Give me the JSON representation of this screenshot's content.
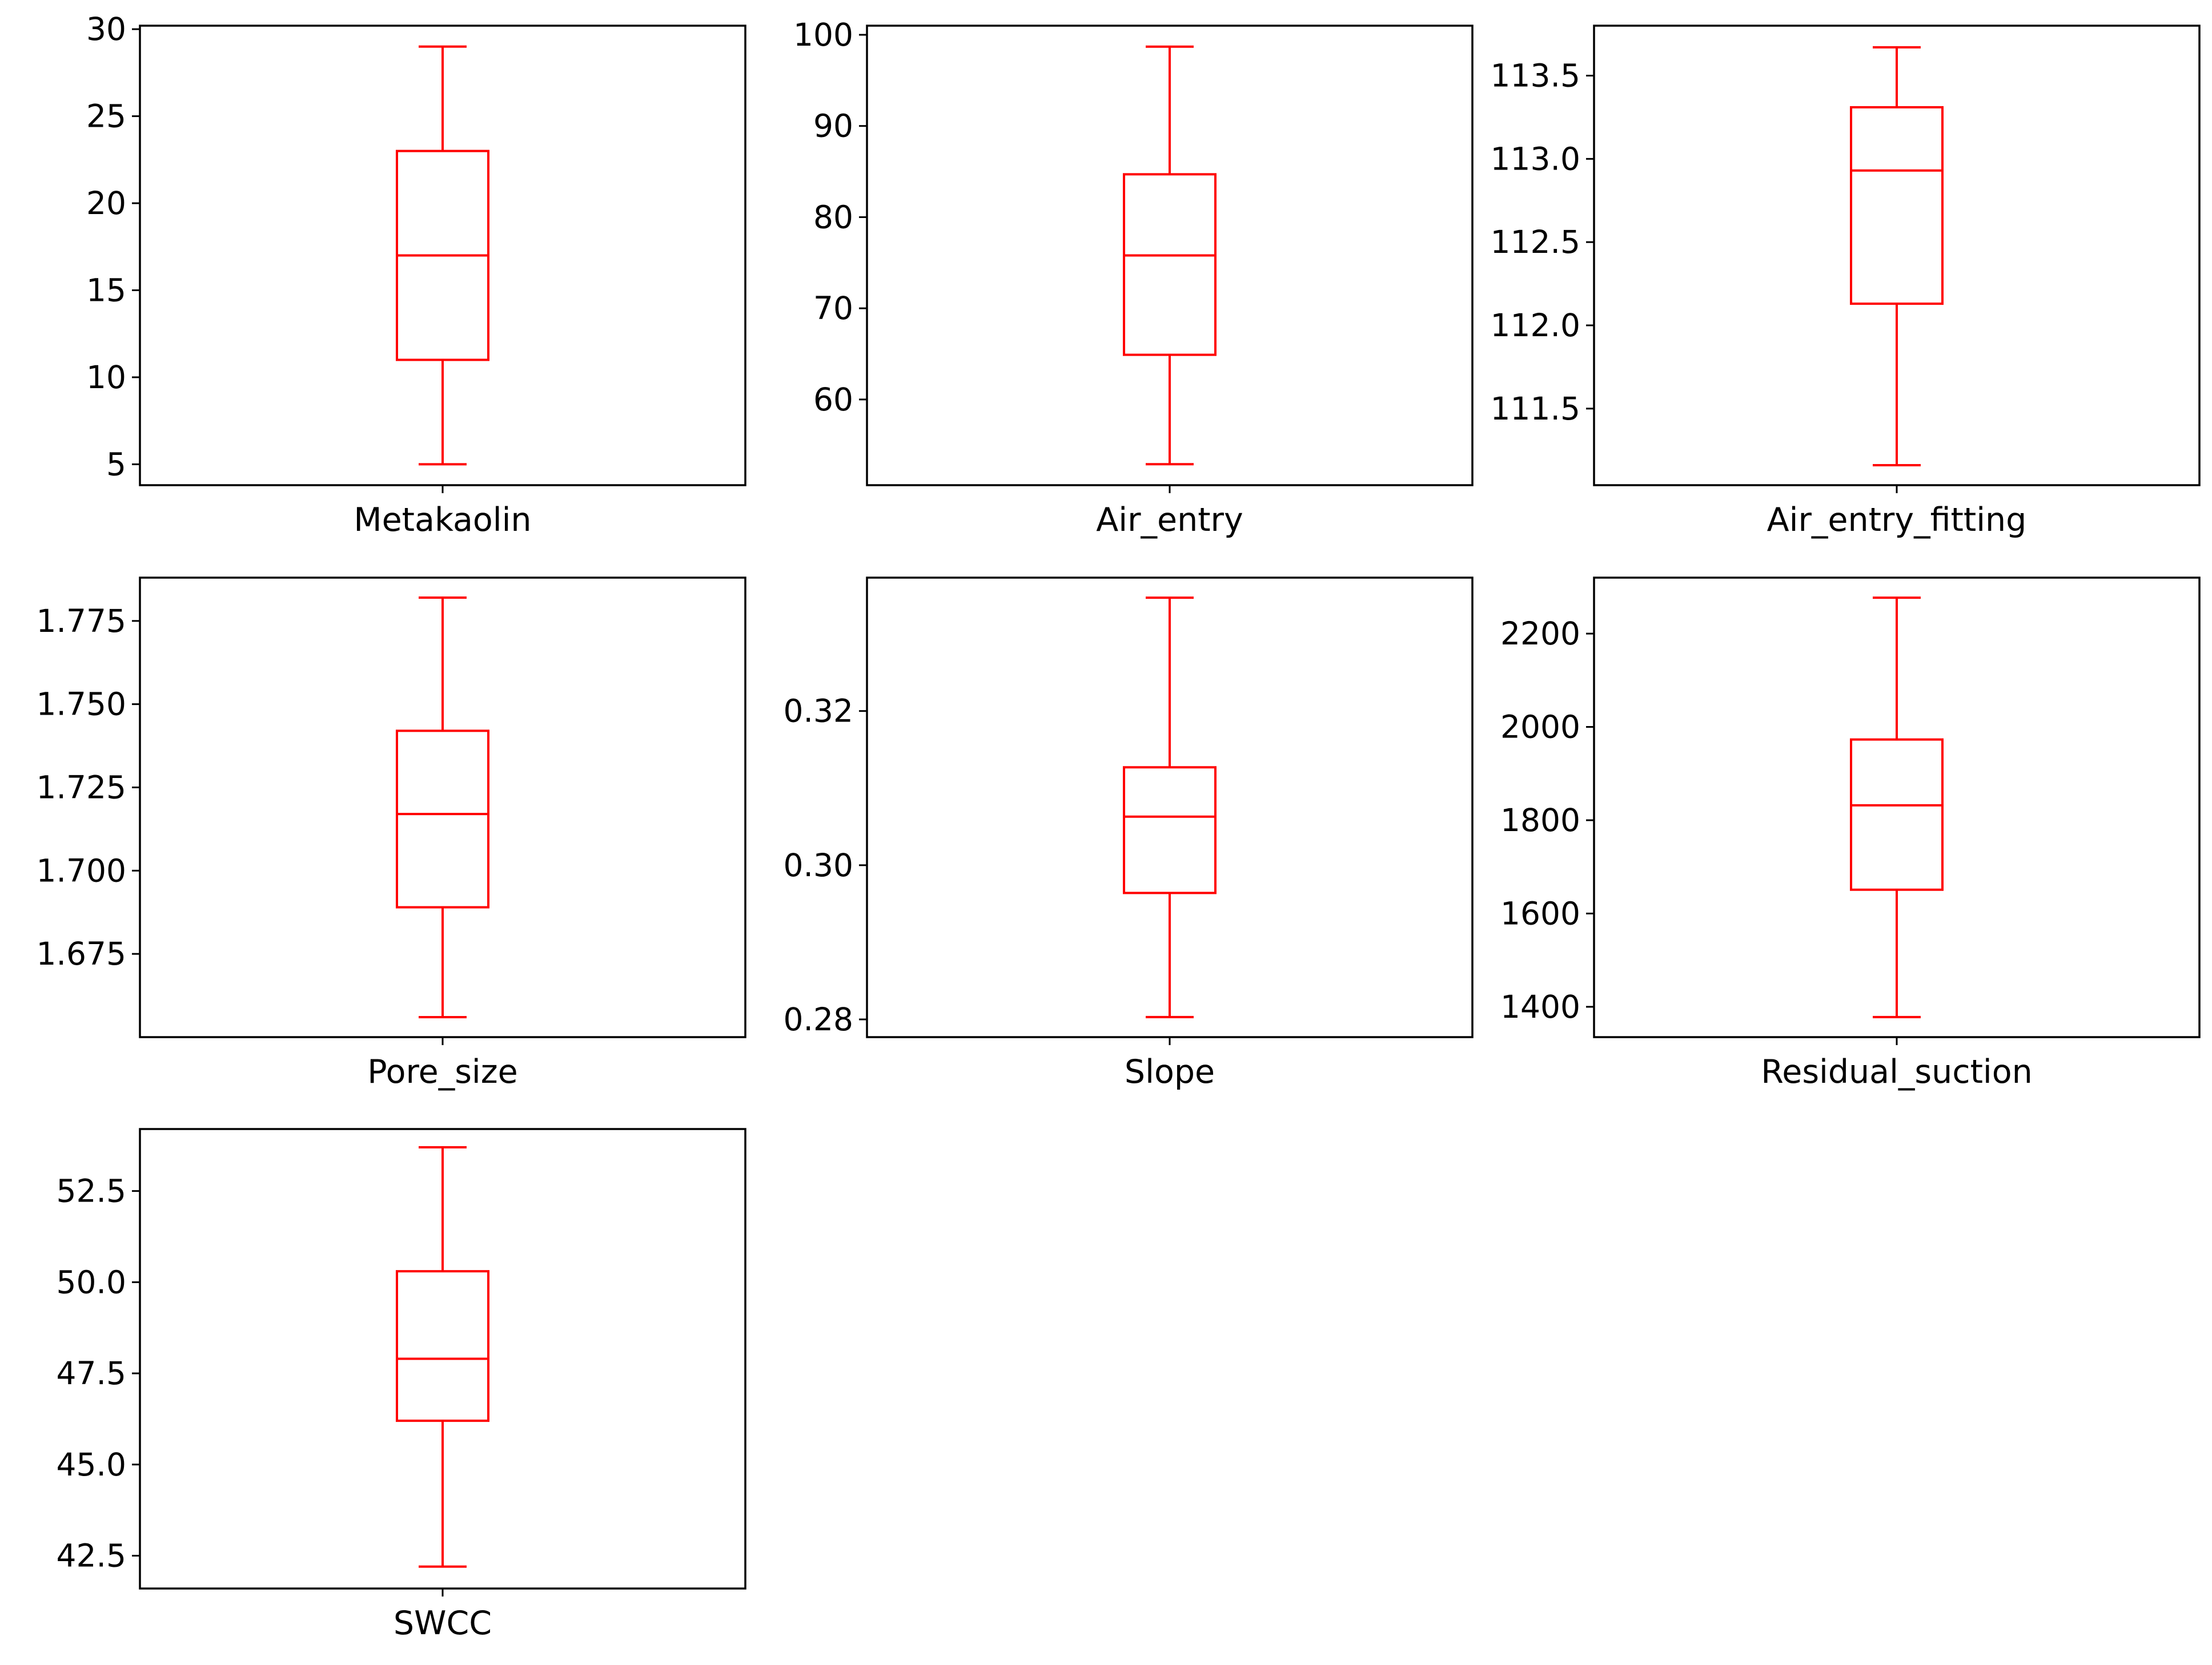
{
  "chart_data": [
    {
      "type": "box",
      "label": "Metakaolin",
      "color": "#ff0000",
      "stats": {
        "min": 5,
        "q1": 11,
        "median": 17,
        "q3": 23,
        "max": 29
      },
      "ylim": [
        3.8,
        30.2
      ],
      "ticks": [
        5,
        10,
        15,
        20,
        25,
        30
      ],
      "tick_labels": [
        "5",
        "10",
        "15",
        "20",
        "25",
        "30"
      ]
    },
    {
      "type": "box",
      "label": "Air_entry",
      "color": "#ff0000",
      "stats": {
        "min": 52.9,
        "q1": 64.9,
        "median": 75.8,
        "q3": 84.7,
        "max": 98.7
      },
      "ylim": [
        50.6,
        101.0
      ],
      "ticks": [
        60,
        70,
        80,
        90,
        100
      ],
      "tick_labels": [
        "60",
        "70",
        "80",
        "90",
        "100"
      ]
    },
    {
      "type": "box",
      "label": "Air_entry_fitting",
      "color": "#ff0000",
      "stats": {
        "min": 111.16,
        "q1": 112.13,
        "median": 112.93,
        "q3": 113.31,
        "max": 113.67
      },
      "ylim": [
        111.04,
        113.8
      ],
      "ticks": [
        111.5,
        112.0,
        112.5,
        113.0,
        113.5
      ],
      "tick_labels": [
        "111.5",
        "112.0",
        "112.5",
        "113.0",
        "113.5"
      ]
    },
    {
      "type": "box",
      "label": "Pore_size",
      "color": "#ff0000",
      "stats": {
        "min": 1.656,
        "q1": 1.689,
        "median": 1.717,
        "q3": 1.742,
        "max": 1.782
      },
      "ylim": [
        1.65,
        1.788
      ],
      "ticks": [
        1.675,
        1.7,
        1.725,
        1.75,
        1.775
      ],
      "tick_labels": [
        "1.675",
        "1.700",
        "1.725",
        "1.750",
        "1.775"
      ]
    },
    {
      "type": "box",
      "label": "Slope",
      "color": "#ff0000",
      "stats": {
        "min": 0.2803,
        "q1": 0.2964,
        "median": 0.3063,
        "q3": 0.3127,
        "max": 0.3347
      },
      "ylim": [
        0.2777,
        0.3373
      ],
      "ticks": [
        0.28,
        0.3,
        0.32
      ],
      "tick_labels": [
        "0.28",
        "0.30",
        "0.32"
      ]
    },
    {
      "type": "box",
      "label": "Residual_suction",
      "color": "#ff0000",
      "stats": {
        "min": 1378,
        "q1": 1651,
        "median": 1832,
        "q3": 1973,
        "max": 2277
      },
      "ylim": [
        1335,
        2320
      ],
      "ticks": [
        1400,
        1600,
        1800,
        2000,
        2200
      ],
      "tick_labels": [
        "1400",
        "1600",
        "1800",
        "2000",
        "2200"
      ]
    },
    {
      "type": "box",
      "label": "SWCC",
      "color": "#ff0000",
      "stats": {
        "min": 42.2,
        "q1": 46.2,
        "median": 47.9,
        "q3": 50.3,
        "max": 53.7
      },
      "ylim": [
        41.6,
        54.2
      ],
      "ticks": [
        42.5,
        45.0,
        47.5,
        50.0,
        52.5
      ],
      "tick_labels": [
        "42.5",
        "45.0",
        "47.5",
        "50.0",
        "52.5"
      ]
    }
  ]
}
